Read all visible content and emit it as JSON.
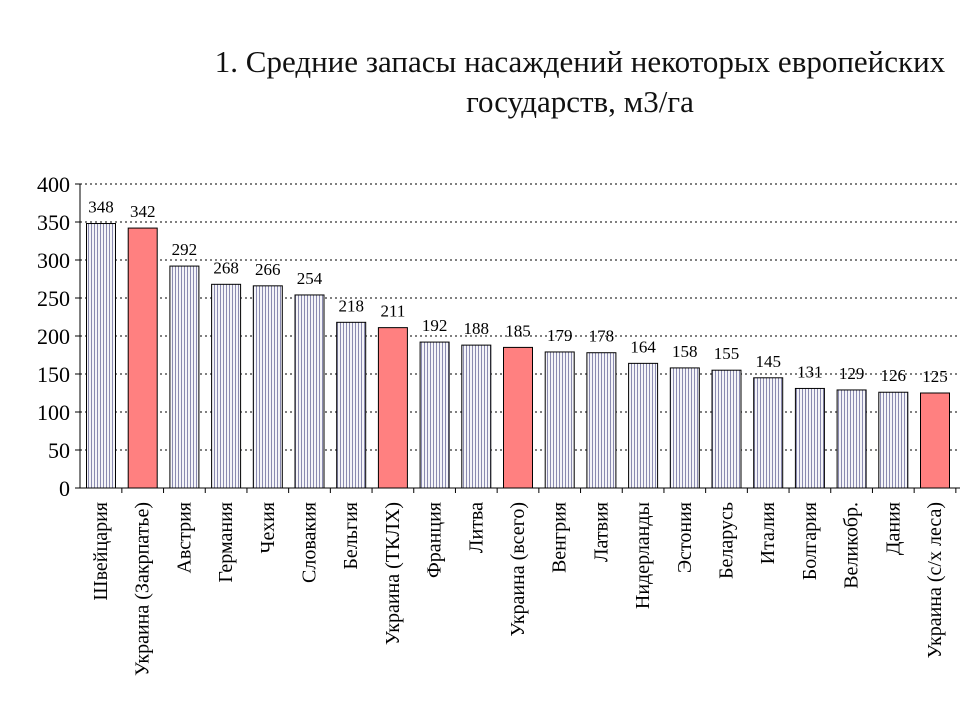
{
  "chart_data": {
    "type": "bar",
    "title": "1. Средние запасы насаждений некоторых европейских\nгосударств, м3/га",
    "xlabel": "",
    "ylabel": "",
    "ylim": [
      0,
      400
    ],
    "yticks": [
      0,
      50,
      100,
      150,
      200,
      250,
      300,
      350,
      400
    ],
    "grid": true,
    "legend": "none",
    "categories": [
      "Швейцария",
      "Украина (Закрпатье)",
      "Австрия",
      "Германия",
      "Чехия",
      "Словакия",
      "Бельгия",
      "Украина (ТКЛХ)",
      "Франция",
      "Литва",
      "Украина (всего)",
      "Венгрия",
      "Латвия",
      "Нидерланды",
      "Эстония",
      "Беларусь",
      "Италия",
      "Болгария",
      "Великобр.",
      "Дания",
      "Украина (с/х леса)"
    ],
    "values": [
      348,
      342,
      292,
      268,
      266,
      254,
      218,
      211,
      192,
      188,
      185,
      179,
      178,
      164,
      158,
      155,
      145,
      131,
      129,
      126,
      125
    ],
    "highlight_indices": [
      1,
      7,
      10,
      20
    ],
    "colors": {
      "bar_fill": "#f4f4f8",
      "bar_stripe": "#8a8ab0",
      "highlight_fill": "#ff8080",
      "outline": "#000000"
    }
  }
}
